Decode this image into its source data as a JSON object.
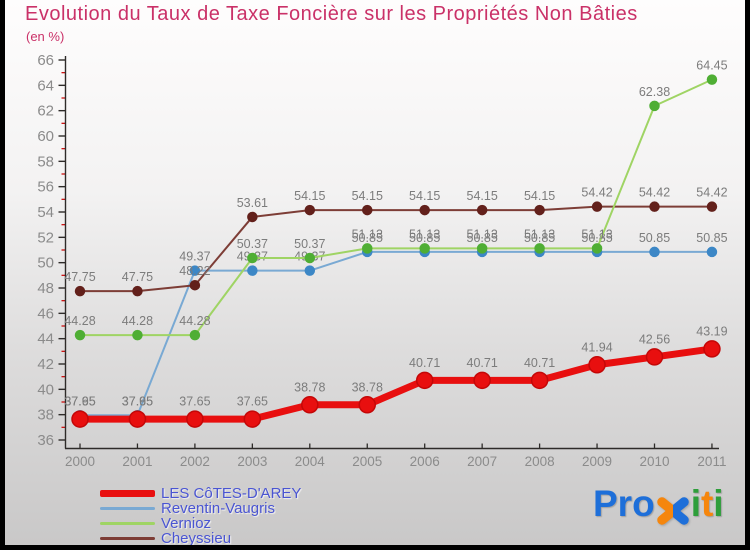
{
  "window": {
    "border_color": "#000000",
    "bg_top": "#fefdfd",
    "bg_bottom": "#c9c8c8"
  },
  "header": {
    "title_color": "#ca3168"
  },
  "chart_data": {
    "type": "line",
    "title": "Evolution du Taux de Taxe Foncière sur les Propriétés Non Bâties",
    "subtitle": "(en %)",
    "xlabel": "",
    "ylabel": "",
    "x": [
      2000,
      2001,
      2002,
      2003,
      2004,
      2005,
      2006,
      2007,
      2008,
      2009,
      2010,
      2011
    ],
    "ylim": [
      36,
      66
    ],
    "yticks_major": [
      36,
      38,
      40,
      42,
      44,
      46,
      48,
      50,
      52,
      54,
      56,
      58,
      60,
      62,
      64,
      66
    ],
    "yticks_minor": [
      37,
      39,
      41,
      43,
      45,
      47,
      49,
      51,
      53,
      55,
      57,
      59,
      61,
      63,
      65
    ],
    "grid": false,
    "legend_position": "bottom-left",
    "axis_color": "#2e2b29",
    "tick_label_color": "#8b8b8b",
    "minor_tick_color": "#cc1111",
    "point_label_color": "#7c7c7c",
    "z_order": [
      1,
      3,
      2,
      0
    ],
    "series": [
      {
        "name": "LES CôTES-D'AREY",
        "line_color": "#e80f0f",
        "marker_color": "#e80f0f",
        "marker_stroke": "#c40707",
        "line_width": 7,
        "marker_radius": 8,
        "values": [
          37.65,
          37.65,
          37.65,
          37.65,
          38.78,
          38.78,
          40.71,
          40.71,
          40.71,
          41.94,
          42.56,
          43.19
        ]
      },
      {
        "name": "Reventin-Vaugris",
        "line_color": "#79a9d3",
        "marker_color": "#3c87c6",
        "marker_stroke": "#3c87c6",
        "line_width": 2,
        "marker_radius": 4.5,
        "values": [
          37.95,
          37.95,
          49.37,
          49.37,
          49.37,
          50.85,
          50.85,
          50.85,
          50.85,
          50.85,
          50.85,
          50.85
        ]
      },
      {
        "name": "Vernioz",
        "line_color": "#9fd464",
        "marker_color": "#4fae34",
        "marker_stroke": "#4fae34",
        "line_width": 2,
        "marker_radius": 4.5,
        "values": [
          44.28,
          44.28,
          44.28,
          50.37,
          50.37,
          51.13,
          51.13,
          51.13,
          51.13,
          51.13,
          62.38,
          64.45
        ]
      },
      {
        "name": "Cheyssieu",
        "line_color": "#7d3d36",
        "marker_color": "#63201b",
        "marker_stroke": "#63201b",
        "line_width": 2,
        "marker_radius": 4.5,
        "values": [
          47.75,
          47.75,
          48.22,
          53.61,
          54.15,
          54.15,
          54.15,
          54.15,
          54.15,
          54.42,
          54.42,
          54.42
        ]
      }
    ]
  },
  "legend": {
    "text_color": "#4a55d2",
    "items": [
      {
        "series": 0,
        "swatch_height": 7
      },
      {
        "series": 1,
        "swatch_height": 3
      },
      {
        "series": 2,
        "swatch_height": 3
      },
      {
        "series": 3,
        "swatch_height": 3
      }
    ]
  },
  "logo": {
    "name": "Proxiti",
    "segments": [
      {
        "kind": "text",
        "text": "Pro",
        "color": "#1e6fd9"
      },
      {
        "kind": "xmark",
        "left_color": "#f5860d",
        "right_color": "#1e6fd9"
      },
      {
        "kind": "text",
        "text": "i",
        "color": "#2e9e3a"
      },
      {
        "kind": "text",
        "text": "t",
        "color": "#f5860d"
      },
      {
        "kind": "text",
        "text": "i",
        "color": "#2e9e3a"
      }
    ]
  }
}
